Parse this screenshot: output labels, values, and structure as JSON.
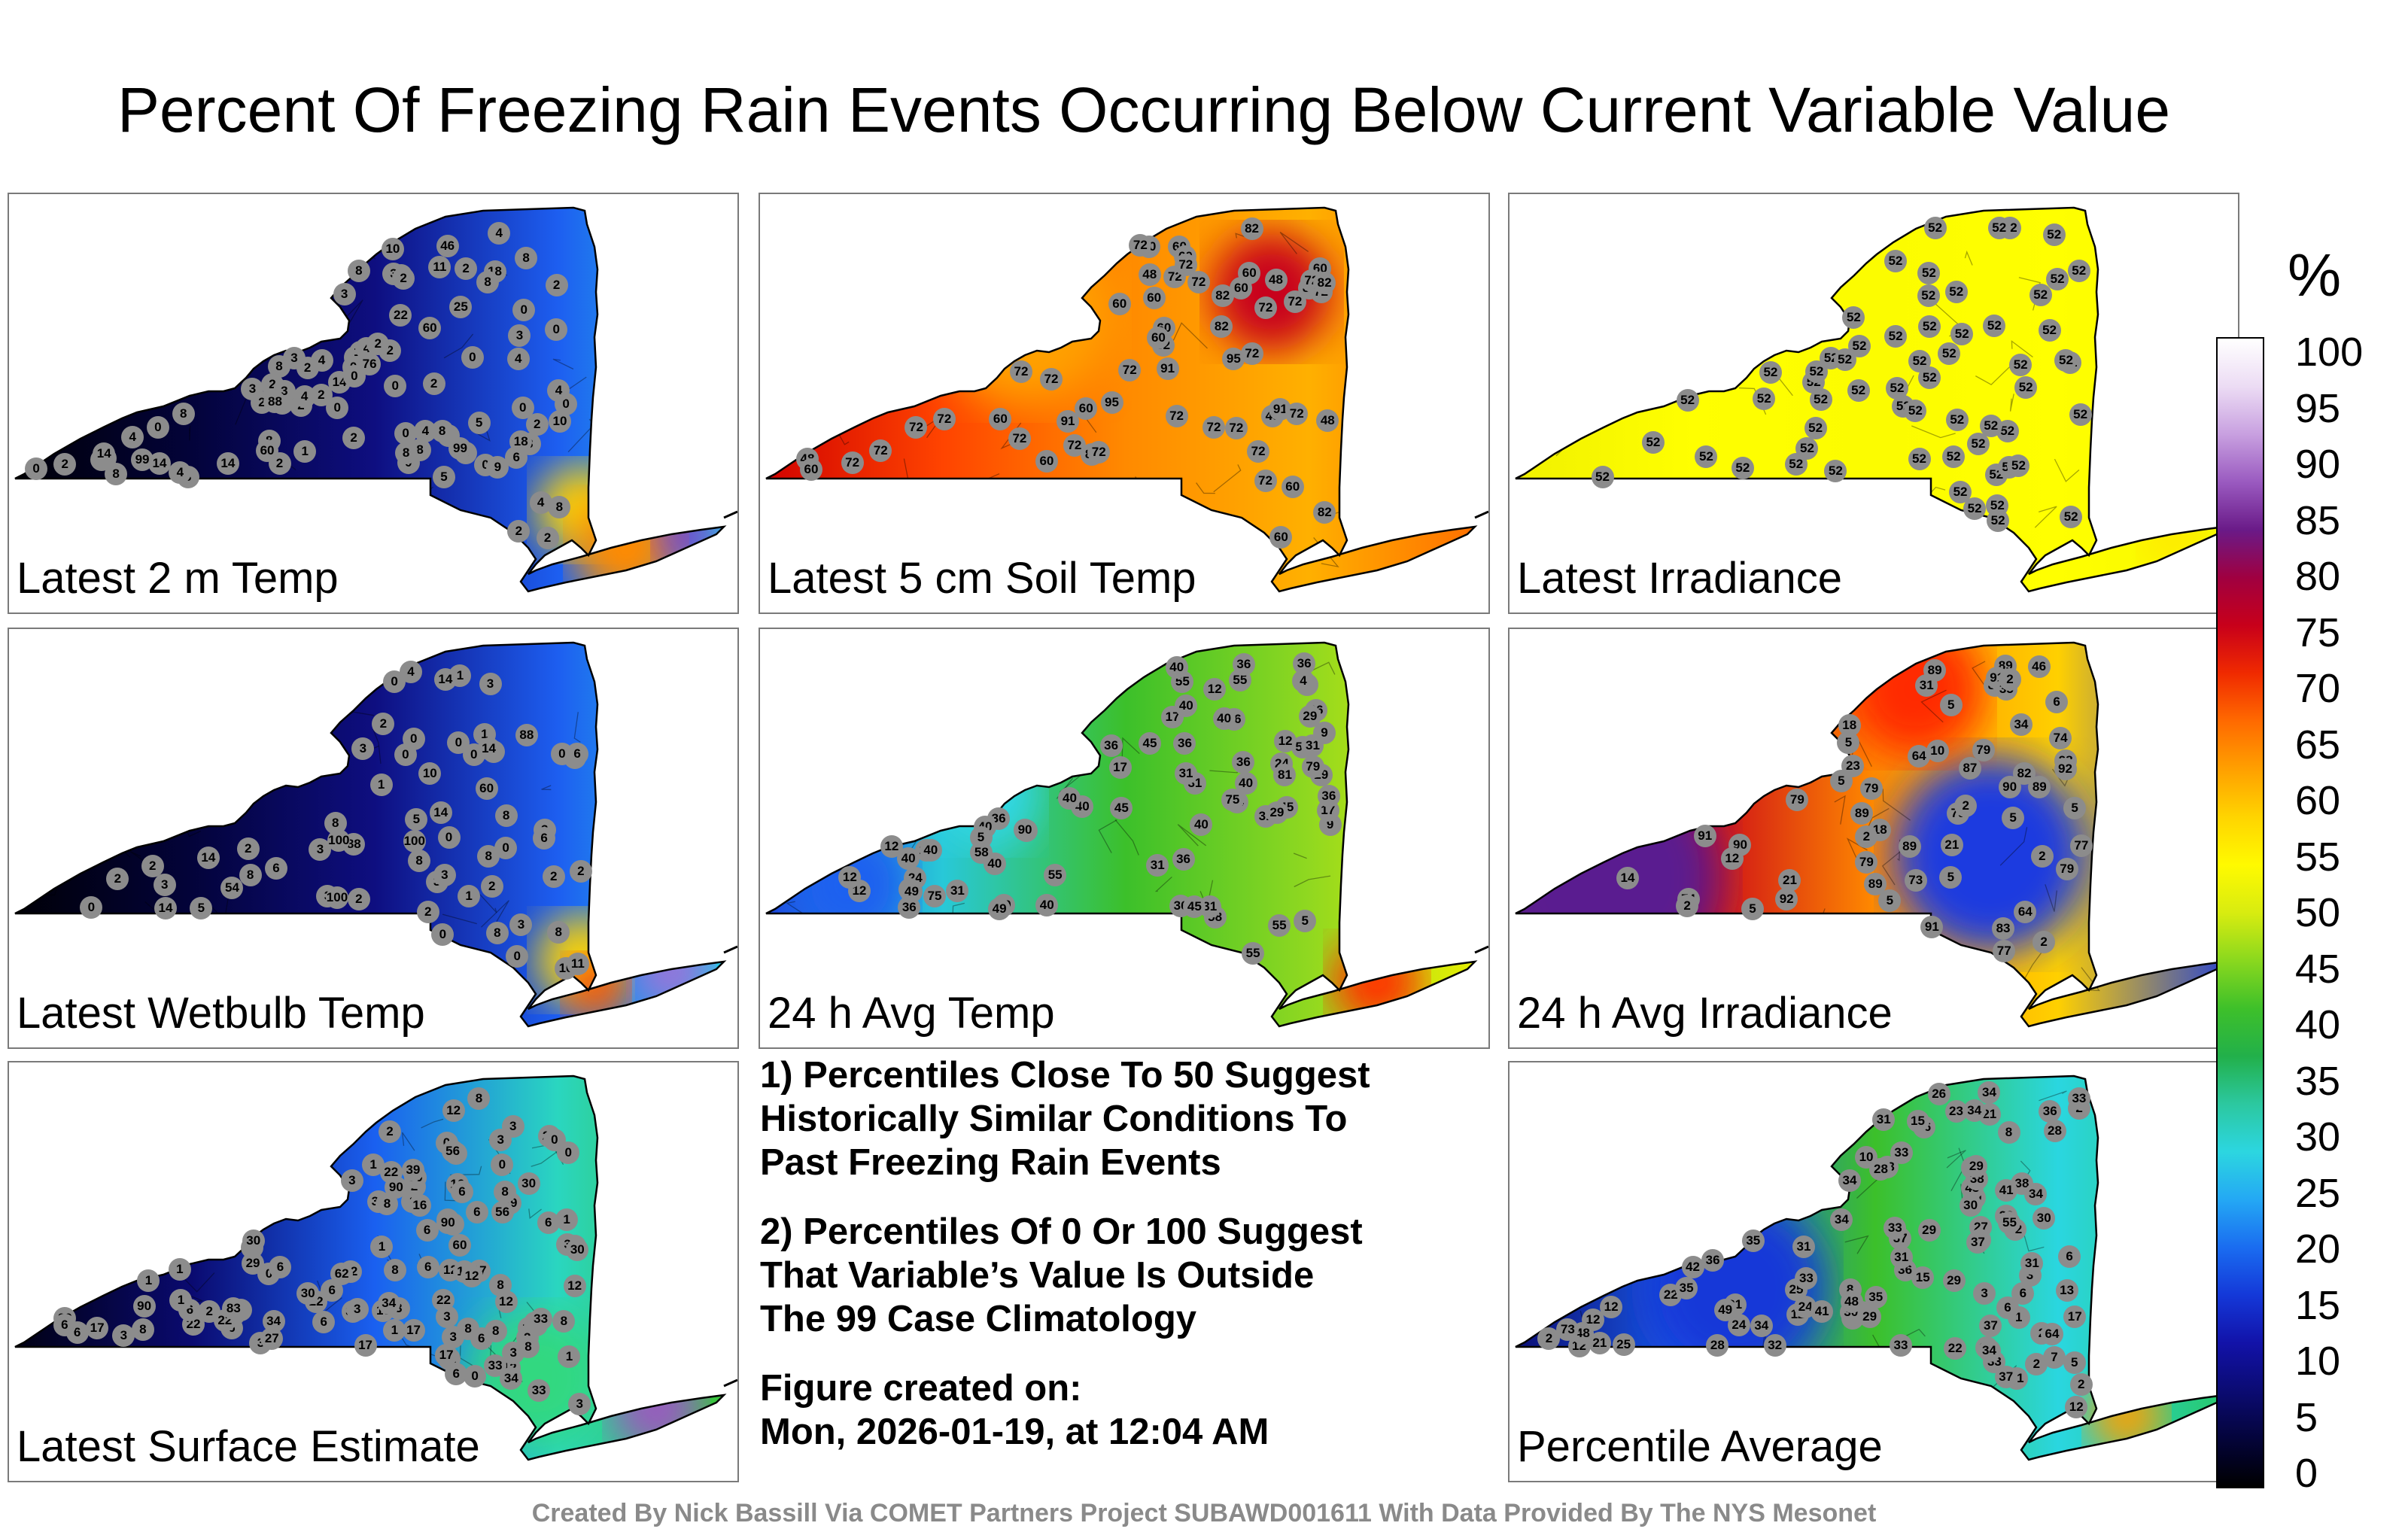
{
  "title": "Percent Of Freezing Rain Events Occurring Below Current Variable Value",
  "colorbar": {
    "unit": "%",
    "ticks": [
      "0",
      "5",
      "10",
      "15",
      "20",
      "25",
      "30",
      "35",
      "40",
      "45",
      "50",
      "55",
      "60",
      "65",
      "70",
      "75",
      "80",
      "85",
      "90",
      "95",
      "100"
    ],
    "colors": [
      "#000000",
      "#04043a",
      "#0b0b72",
      "#1212a8",
      "#1438d8",
      "#1a6cf0",
      "#24a8f4",
      "#2cd6e0",
      "#2cc8a0",
      "#22b04a",
      "#3ec02a",
      "#8ad81e",
      "#d8ec10",
      "#fffa00",
      "#ffd400",
      "#ffa000",
      "#ff6a00",
      "#f02a00",
      "#c8001a",
      "#a00040",
      "#6a1a88",
      "#9a5ac0",
      "#c8a0e0",
      "#ecdcf4",
      "#ffffff"
    ]
  },
  "panels": [
    {
      "label": "Latest 2 m Temp",
      "stations": [
        "2",
        "3",
        "1",
        "8",
        "10",
        "8",
        "14",
        "2",
        "2",
        "2",
        "22",
        "8",
        "2",
        "0",
        "0",
        "0",
        "2",
        "8",
        "11",
        "4",
        "4",
        "8",
        "0",
        "0",
        "0",
        "0",
        "8",
        "18",
        "2",
        "3",
        "0",
        "2",
        "4",
        "4",
        "0",
        "8",
        "4",
        "1",
        "0",
        "2",
        "5",
        "2",
        "6",
        "3",
        "2",
        "4",
        "4",
        "14",
        "14",
        "8",
        "0",
        "3",
        "2",
        "6",
        "8",
        "5",
        "4",
        "2",
        "0",
        "2",
        "0",
        "2",
        "2",
        "3",
        "8",
        "14",
        "10",
        "0",
        "0",
        "2",
        "4",
        "3",
        "5",
        "3",
        "2",
        "8",
        "8",
        "9",
        "2",
        "8",
        "8",
        "4",
        "3",
        "18",
        "14",
        "25",
        "76",
        "99",
        "99",
        "46",
        "60",
        "88",
        "60"
      ]
    },
    {
      "label": "Latest 5 cm Soil Temp",
      "stations": [
        "72",
        "60",
        "72",
        "82",
        "72",
        "60",
        "95",
        "60",
        "72",
        "95",
        "72",
        "60",
        "48",
        "72",
        "72",
        "91",
        "60",
        "60",
        "72",
        "60",
        "91",
        "72",
        "82",
        "48",
        "72",
        "72",
        "82",
        "60",
        "48",
        "72",
        "72",
        "82",
        "48",
        "60",
        "60",
        "82",
        "60",
        "60",
        "60",
        "91",
        "72",
        "72",
        "72",
        "60",
        "72",
        "72",
        "72",
        "72",
        "72",
        "60",
        "60",
        "72",
        "82",
        "72",
        "48",
        "72",
        "82",
        "82",
        "72"
      ]
    },
    {
      "label": "Latest Irradiance",
      "stations": [
        "52",
        "52",
        "52",
        "52",
        "52",
        "52",
        "52",
        "52",
        "52",
        "52",
        "52",
        "52",
        "52",
        "52",
        "52",
        "52",
        "52",
        "52",
        "52",
        "52",
        "52",
        "52",
        "52",
        "52",
        "52",
        "52",
        "52",
        "52",
        "52",
        "52",
        "52",
        "52",
        "52",
        "52",
        "52",
        "52",
        "52",
        "52",
        "52",
        "52",
        "52",
        "52",
        "52",
        "52",
        "52",
        "52",
        "52",
        "52",
        "52",
        "52",
        "52",
        "52",
        "52",
        "52",
        "52",
        "52",
        "52",
        "52",
        "52",
        "52"
      ]
    },
    {
      "label": "Latest Wetbulb Temp",
      "stations": [
        "2",
        "10",
        "3",
        "8",
        "2",
        "14",
        "2",
        "2",
        "2",
        "0",
        "0",
        "0",
        "11",
        "8",
        "2",
        "0",
        "0",
        "8",
        "0",
        "6",
        "0",
        "1",
        "3",
        "5",
        "3",
        "4",
        "2",
        "1",
        "0",
        "6",
        "6",
        "5",
        "0",
        "0",
        "3",
        "2",
        "3",
        "3",
        "3",
        "0",
        "1",
        "3",
        "8",
        "14",
        "14",
        "3",
        "2",
        "1",
        "2",
        "8",
        "10",
        "0",
        "14",
        "8",
        "8",
        "14",
        "88",
        "100",
        "100",
        "100",
        "54",
        "88",
        "60"
      ]
    },
    {
      "label": "24 h Avg Temp",
      "stations": [
        "36",
        "55",
        "36",
        "40",
        "17",
        "24",
        "40",
        "24",
        "58",
        "45",
        "40",
        "36",
        "12",
        "24",
        "9",
        "17",
        "58",
        "12",
        "17",
        "45",
        "55",
        "31",
        "40",
        "40",
        "29",
        "36",
        "40",
        "31",
        "29",
        "40",
        "31",
        "36",
        "36",
        "40",
        "40",
        "49",
        "31",
        "36",
        "5",
        "29",
        "49",
        "12",
        "5",
        "36",
        "36",
        "45",
        "12",
        "36",
        "24",
        "29",
        "31",
        "40",
        "36",
        "31",
        "40",
        "55",
        "40",
        "9",
        "4",
        "5",
        "12",
        "40",
        "40",
        "31",
        "36",
        "45",
        "55",
        "55",
        "58",
        "79",
        "75",
        "90",
        "75",
        "81"
      ]
    },
    {
      "label": "24 h Avg Irradiance",
      "stations": [
        "89",
        "83",
        "77",
        "46",
        "21",
        "79",
        "74",
        "79",
        "79",
        "73",
        "89",
        "5",
        "5",
        "5",
        "77",
        "34",
        "18",
        "2",
        "21",
        "87",
        "89",
        "90",
        "90",
        "79",
        "64",
        "89",
        "91",
        "87",
        "28",
        "10",
        "18",
        "91",
        "64",
        "89",
        "82",
        "79",
        "6",
        "92",
        "92",
        "91",
        "89",
        "79",
        "23",
        "74",
        "31",
        "14",
        "2",
        "35",
        "2",
        "2",
        "2",
        "2",
        "5",
        "5",
        "12",
        "5",
        "5",
        "5"
      ]
    },
    {
      "label": "Latest Surface Estimate",
      "stations": [
        "2",
        "12",
        "1",
        "27",
        "17",
        "6",
        "22",
        "22",
        "2",
        "3",
        "3",
        "29",
        "22",
        "33",
        "17",
        "6",
        "1",
        "3",
        "6",
        "0",
        "0",
        "12",
        "16",
        "1",
        "17",
        "3",
        "3",
        "27",
        "12",
        "12",
        "12",
        "3",
        "16",
        "6",
        "6",
        "3",
        "6",
        "3",
        "1",
        "17",
        "0",
        "3",
        "22",
        "29",
        "16",
        "6",
        "3",
        "2",
        "2",
        "3",
        "8",
        "1",
        "0",
        "3",
        "6",
        "3",
        "6",
        "6",
        "6",
        "8",
        "12",
        "22",
        "33",
        "30",
        "3",
        "0",
        "8",
        "1",
        "16",
        "8",
        "8",
        "8",
        "0",
        "8",
        "8",
        "6",
        "3",
        "6",
        "3",
        "30",
        "30",
        "22",
        "1",
        "6",
        "1",
        "3",
        "12",
        "8",
        "6",
        "6",
        "16",
        "8",
        "8",
        "30",
        "17",
        "29",
        "30",
        "3",
        "1",
        "34",
        "34",
        "34",
        "33",
        "33",
        "30",
        "39",
        "56",
        "90",
        "90",
        "62",
        "83",
        "90",
        "56",
        "60"
      ]
    },
    {
      "label": "Percentile Average",
      "stations": [
        "36",
        "12",
        "1",
        "42",
        "17",
        "37",
        "51",
        "24",
        "28",
        "34",
        "12",
        "31",
        "41",
        "22",
        "3",
        "12",
        "27",
        "21",
        "36",
        "3",
        "3",
        "34",
        "12",
        "41",
        "33",
        "24",
        "38",
        "33",
        "35",
        "16",
        "8",
        "21",
        "34",
        "8",
        "30",
        "37",
        "12",
        "43",
        "33",
        "35",
        "12",
        "22",
        "2",
        "2",
        "36",
        "38",
        "37",
        "2",
        "29",
        "29",
        "29",
        "31",
        "30",
        "25",
        "28",
        "35",
        "13",
        "10",
        "38",
        "15",
        "6",
        "8",
        "30",
        "34",
        "28",
        "2",
        "15",
        "31",
        "32",
        "37",
        "33",
        "5",
        "6",
        "6",
        "2",
        "7",
        "30",
        "23",
        "25",
        "29",
        "31",
        "32",
        "26",
        "29",
        "33",
        "34",
        "34",
        "34",
        "33",
        "31",
        "41",
        "33",
        "48",
        "48",
        "49",
        "55",
        "64",
        "73"
      ]
    }
  ],
  "notes": [
    "1) Percentiles Close To 50 Suggest\nHistorically Similar Conditions To\nPast Freezing Rain Events",
    "2) Percentiles Of 0 Or 100 Suggest\nThat Variable’s Value Is Outside\nThe 99 Case Climatology",
    "Figure created on:\nMon, 2026-01-19, at 12:04 AM"
  ],
  "footer": "Created By Nick Bassill Via COMET Partners Project SUBAWD001611 With Data Provided By The NYS Mesonet"
}
